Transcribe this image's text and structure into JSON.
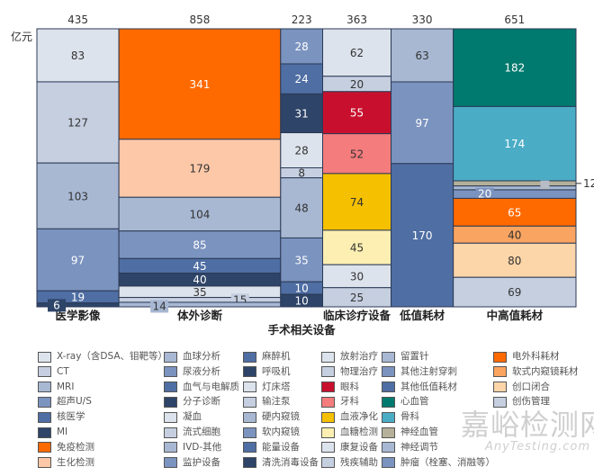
{
  "chart_data": {
    "type": "marimekko",
    "unit_label": "亿元",
    "columns": [
      {
        "name": "医学影像",
        "total": 435,
        "segments": [
          {
            "name": "X-ray（含DSA、钼靶等）",
            "value": 83,
            "color": "#dde3ec"
          },
          {
            "name": "CT",
            "value": 127,
            "color": "#c5cfe0"
          },
          {
            "name": "MRI",
            "value": 103,
            "color": "#a8b8d3"
          },
          {
            "name": "超声U/S",
            "value": 97,
            "color": "#7b93bf"
          },
          {
            "name": "核医学",
            "value": 19,
            "color": "#4f6ea3"
          },
          {
            "name": "MI",
            "value": 6,
            "color": "#2e4468"
          },
          {
            "name": "免疫检测",
            "value": null,
            "color": "#ff6a00"
          },
          {
            "name": "生化检测",
            "value": null,
            "color": "#fcc8a8"
          }
        ]
      },
      {
        "name": "体外诊断",
        "total": 858,
        "segments": [
          {
            "name": "免疫检测",
            "value": 341,
            "color": "#ff6a00"
          },
          {
            "name": "生化检测",
            "value": 179,
            "color": "#fcc8a8"
          },
          {
            "name": "血球分析",
            "value": 104,
            "color": "#a8b8d3"
          },
          {
            "name": "尿液分析",
            "value": 85,
            "color": "#7b93bf"
          },
          {
            "name": "血气与电解质",
            "value": 45,
            "color": "#4f6ea3"
          },
          {
            "name": "分子诊断",
            "value": 40,
            "color": "#2e4468"
          },
          {
            "name": "凝血",
            "value": 35,
            "color": "#dde3ec"
          },
          {
            "name": "流式细胞",
            "value": 15,
            "color": "#c5cfe0"
          },
          {
            "name": "IVD-其他",
            "value": 14,
            "color": "#a8b8d3"
          }
        ]
      },
      {
        "name": "手术相关设备",
        "total": 223,
        "segments": [
          {
            "name": "监护设备",
            "value": 28,
            "color": "#7b93bf"
          },
          {
            "name": "麻醉机",
            "value": 24,
            "color": "#4f6ea3"
          },
          {
            "name": "呼吸机",
            "value": 31,
            "color": "#2e4468"
          },
          {
            "name": "灯床塔",
            "value": 28,
            "color": "#dde3ec"
          },
          {
            "name": "输注泵",
            "value": 8,
            "color": "#c5cfe0"
          },
          {
            "name": "硬内窥镜",
            "value": 48,
            "color": "#a8b8d3"
          },
          {
            "name": "软内窥镜",
            "value": 35,
            "color": "#7b93bf"
          },
          {
            "name": "能量设备",
            "value": 10,
            "color": "#4f6ea3"
          },
          {
            "name": "清洗消毒设备",
            "value": 10,
            "color": "#2e4468"
          }
        ]
      },
      {
        "name": "临床诊疗设备",
        "total": 363,
        "segments": [
          {
            "name": "放射治疗",
            "value": 62,
            "color": "#dde3ec"
          },
          {
            "name": "物理治疗",
            "value": 20,
            "color": "#c5cfe0"
          },
          {
            "name": "眼科",
            "value": 55,
            "color": "#c8102e"
          },
          {
            "name": "牙科",
            "value": 52,
            "color": "#f47c7c"
          },
          {
            "name": "血液净化",
            "value": 74,
            "color": "#f5c000"
          },
          {
            "name": "血糖检测",
            "value": 45,
            "color": "#fdefb2"
          },
          {
            "name": "康复设备",
            "value": 30,
            "color": "#dde3ec"
          },
          {
            "name": "残疾辅助",
            "value": 25,
            "color": "#c5cfe0"
          }
        ]
      },
      {
        "name": "低值耗材",
        "total": 330,
        "segments": [
          {
            "name": "留置针",
            "value": 63,
            "color": "#a8b8d3"
          },
          {
            "name": "其他注射穿刺",
            "value": 97,
            "color": "#7b93bf"
          },
          {
            "name": "其他低值耗材",
            "value": 170,
            "color": "#4f6ea3"
          }
        ]
      },
      {
        "name": "中高值耗材",
        "total": 651,
        "segments": [
          {
            "name": "心血管",
            "value": 182,
            "color": "#007a6e"
          },
          {
            "name": "骨科",
            "value": 174,
            "color": "#4bacc6"
          },
          {
            "name": "神经血管",
            "value": 12,
            "color": "#b5b09a"
          },
          {
            "name": "神经调节",
            "value": 9,
            "color": "#a8b8d3",
            "unlabeled": true
          },
          {
            "name": "肿瘤（栓塞、消融等）",
            "value": 20,
            "color": "#7b93bf"
          },
          {
            "name": "电外科耗材",
            "value": 65,
            "color": "#ff6a00"
          },
          {
            "name": "软式内窥镜耗材",
            "value": 40,
            "color": "#f9a460"
          },
          {
            "name": "创口闭合",
            "value": 80,
            "color": "#fcd5a8"
          },
          {
            "name": "创伤管理",
            "value": 69,
            "color": "#c5cfe0"
          }
        ]
      }
    ],
    "legend": [
      "X-ray（含DSA、钼靶等）",
      "CT",
      "MRI",
      "超声U/S",
      "核医学",
      "MI",
      "免疫检测",
      "生化检测",
      "血球分析",
      "尿液分析",
      "血气与电解质",
      "分子诊断",
      "凝血",
      "流式细胞",
      "IVD-其他",
      "监护设备",
      "麻醉机",
      "呼吸机",
      "灯床塔",
      "输注泵",
      "硬内窥镜",
      "软内窥镜",
      "能量设备",
      "清洗消毒设备",
      "放射治疗",
      "物理治疗",
      "眼科",
      "牙科",
      "血液净化",
      "血糖检测",
      "康复设备",
      "残疾辅助",
      "留置针",
      "其他注射穿刺",
      "其他低值耗材",
      "心血管",
      "骨科",
      "神经血管",
      "神经调节",
      "肿瘤（栓塞、消融等）",
      "电外科耗材",
      "软式内窥镜耗材",
      "创口闭合",
      "创伤管理"
    ],
    "legend_colors": [
      "#dde3ec",
      "#c5cfe0",
      "#a8b8d3",
      "#7b93bf",
      "#4f6ea3",
      "#2e4468",
      "#ff6a00",
      "#fcc8a8",
      "#a8b8d3",
      "#7b93bf",
      "#4f6ea3",
      "#2e4468",
      "#dde3ec",
      "#c5cfe0",
      "#a8b8d3",
      "#7b93bf",
      "#4f6ea3",
      "#2e4468",
      "#dde3ec",
      "#c5cfe0",
      "#a8b8d3",
      "#7b93bf",
      "#4f6ea3",
      "#2e4468",
      "#dde3ec",
      "#c5cfe0",
      "#c8102e",
      "#f47c7c",
      "#f5c000",
      "#fdefb2",
      "#dde3ec",
      "#c5cfe0",
      "#a8b8d3",
      "#7b93bf",
      "#4f6ea3",
      "#007a6e",
      "#4bacc6",
      "#b5b09a",
      "#a8b8d3",
      "#7b93bf",
      "#ff6a00",
      "#f9a460",
      "#fcd5a8",
      "#c5cfe0"
    ]
  },
  "watermark": {
    "cn": "嘉峪检测网",
    "en": "AnyTesting.com"
  }
}
